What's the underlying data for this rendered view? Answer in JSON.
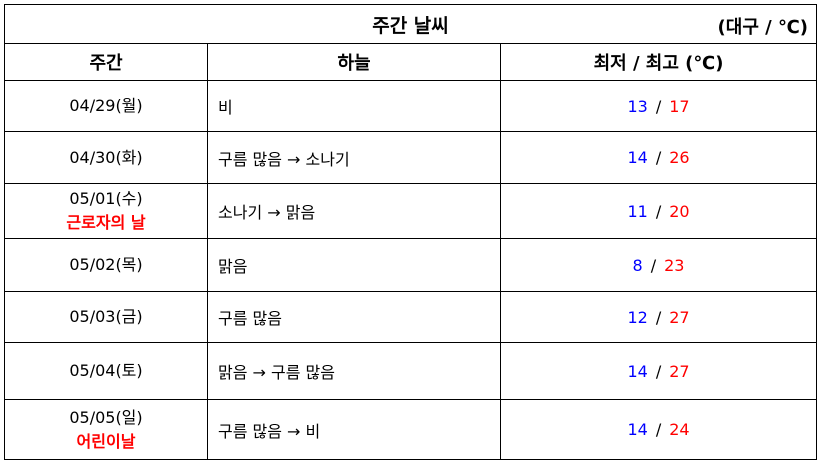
{
  "title": "주간 날씨",
  "unit": "(대구 / ℃)",
  "headers": [
    "주간",
    "하늘",
    "최저 / 최고 (℃)"
  ],
  "colors": {
    "low": "#0000ff",
    "high": "#ff0000",
    "holiday": "#ff0000"
  },
  "rows": [
    {
      "date": "04/29(월)",
      "holiday": "",
      "sky": "비",
      "low": "13",
      "high": "17"
    },
    {
      "date": "04/30(화)",
      "holiday": "",
      "sky": "구름 많음 → 소나기",
      "low": "14",
      "high": "26"
    },
    {
      "date": "05/01(수)",
      "holiday": "근로자의 날",
      "sky": "소나기 → 맑음",
      "low": "11",
      "high": "20"
    },
    {
      "date": "05/02(목)",
      "holiday": "",
      "sky": "맑음",
      "low": "8",
      "high": "23"
    },
    {
      "date": "05/03(금)",
      "holiday": "",
      "sky": "구름 많음",
      "low": "12",
      "high": "27"
    },
    {
      "date": "05/04(토)",
      "holiday": "",
      "sky": "맑음 → 구름 많음",
      "low": "14",
      "high": "27"
    },
    {
      "date": "05/05(일)",
      "holiday": "어린이날",
      "sky": "구름 많음 → 비",
      "low": "14",
      "high": "24"
    }
  ],
  "sep": "/"
}
